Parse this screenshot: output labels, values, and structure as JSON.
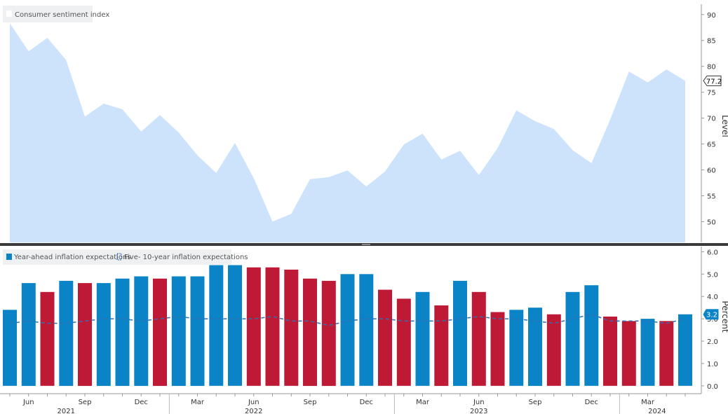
{
  "chart_data": [
    {
      "type": "area",
      "legend": [
        "Consumer sentiment index"
      ],
      "ylabel": "Level",
      "ylim": [
        46,
        92
      ],
      "yticks": [
        50,
        55,
        60,
        65,
        70,
        75,
        80,
        85,
        90
      ],
      "grid": false,
      "legend_position": "top-left",
      "color": "#cce3fb",
      "last_value_label": "77.2",
      "series": [
        {
          "name": "Consumer sentiment index",
          "values": [
            88.3,
            82.9,
            85.5,
            81.2,
            70.3,
            72.8,
            71.7,
            67.4,
            70.6,
            67.2,
            62.8,
            59.4,
            65.2,
            58.4,
            50.0,
            51.5,
            58.2,
            58.6,
            59.9,
            56.8,
            59.7,
            64.9,
            67.0,
            62.0,
            63.7,
            59.0,
            64.2,
            71.5,
            69.4,
            67.9,
            63.8,
            61.3,
            69.7,
            79.0,
            76.9,
            79.4,
            77.2
          ]
        }
      ]
    },
    {
      "type": "bar",
      "legend": [
        "Year-ahead inflation expectations",
        "Five- 10-year inflation expectations"
      ],
      "ylabel": "Percent",
      "ylim": [
        -0.35,
        6.2
      ],
      "yticks": [
        "0.0",
        "1.0",
        "2.0",
        "3.0",
        "4.0",
        "5.0",
        "6.0"
      ],
      "grid": false,
      "legend_position": "top-left",
      "colors": {
        "increase": "#0a84c6",
        "decrease": "#bf1a35",
        "line": "#2f6fb3"
      },
      "last_value_label": "3.2",
      "series": [
        {
          "name": "Year-ahead inflation expectations",
          "values": [
            3.4,
            4.6,
            4.2,
            4.7,
            4.6,
            4.6,
            4.8,
            4.9,
            4.8,
            4.9,
            4.9,
            5.4,
            5.4,
            5.3,
            5.3,
            5.2,
            4.8,
            4.7,
            5.0,
            5.0,
            4.3,
            3.9,
            4.2,
            3.6,
            4.7,
            4.2,
            3.3,
            3.4,
            3.5,
            3.2,
            4.2,
            4.5,
            3.1,
            2.9,
            3.0,
            2.9,
            3.2
          ],
          "direction": [
            "up",
            "up",
            "down",
            "up",
            "down",
            "up",
            "up",
            "up",
            "down",
            "up",
            "up",
            "up",
            "up",
            "down",
            "down",
            "down",
            "down",
            "down",
            "up",
            "up",
            "down",
            "down",
            "up",
            "down",
            "up",
            "down",
            "down",
            "up",
            "up",
            "down",
            "up",
            "up",
            "down",
            "down",
            "up",
            "down",
            "up"
          ]
        },
        {
          "name": "Five- 10-year inflation expectations",
          "values": [
            2.8,
            2.9,
            2.8,
            2.8,
            2.9,
            3.0,
            3.0,
            2.9,
            3.0,
            3.1,
            3.0,
            3.0,
            3.0,
            3.0,
            3.1,
            2.9,
            2.9,
            2.7,
            2.9,
            3.0,
            3.0,
            2.9,
            2.9,
            2.9,
            3.0,
            3.1,
            3.0,
            3.0,
            2.9,
            2.8,
            3.0,
            3.2,
            2.9,
            2.9,
            2.9,
            2.8,
            3.0
          ]
        }
      ]
    }
  ],
  "x_axis": {
    "month_labels": [
      {
        "index": 1,
        "label": "Jun"
      },
      {
        "index": 4,
        "label": "Sep"
      },
      {
        "index": 7,
        "label": "Dec"
      },
      {
        "index": 10,
        "label": "Mar"
      },
      {
        "index": 13,
        "label": "Jun"
      },
      {
        "index": 16,
        "label": "Sep"
      },
      {
        "index": 19,
        "label": "Dec"
      },
      {
        "index": 22,
        "label": "Mar"
      },
      {
        "index": 25,
        "label": "Jun"
      },
      {
        "index": 28,
        "label": "Sep"
      },
      {
        "index": 31,
        "label": "Dec"
      },
      {
        "index": 34,
        "label": "Mar"
      }
    ],
    "year_labels": [
      {
        "index": 3,
        "label": "2021"
      },
      {
        "index": 13,
        "label": "2022"
      },
      {
        "index": 25,
        "label": "2023"
      },
      {
        "index": 34.5,
        "label": "2024"
      }
    ]
  }
}
